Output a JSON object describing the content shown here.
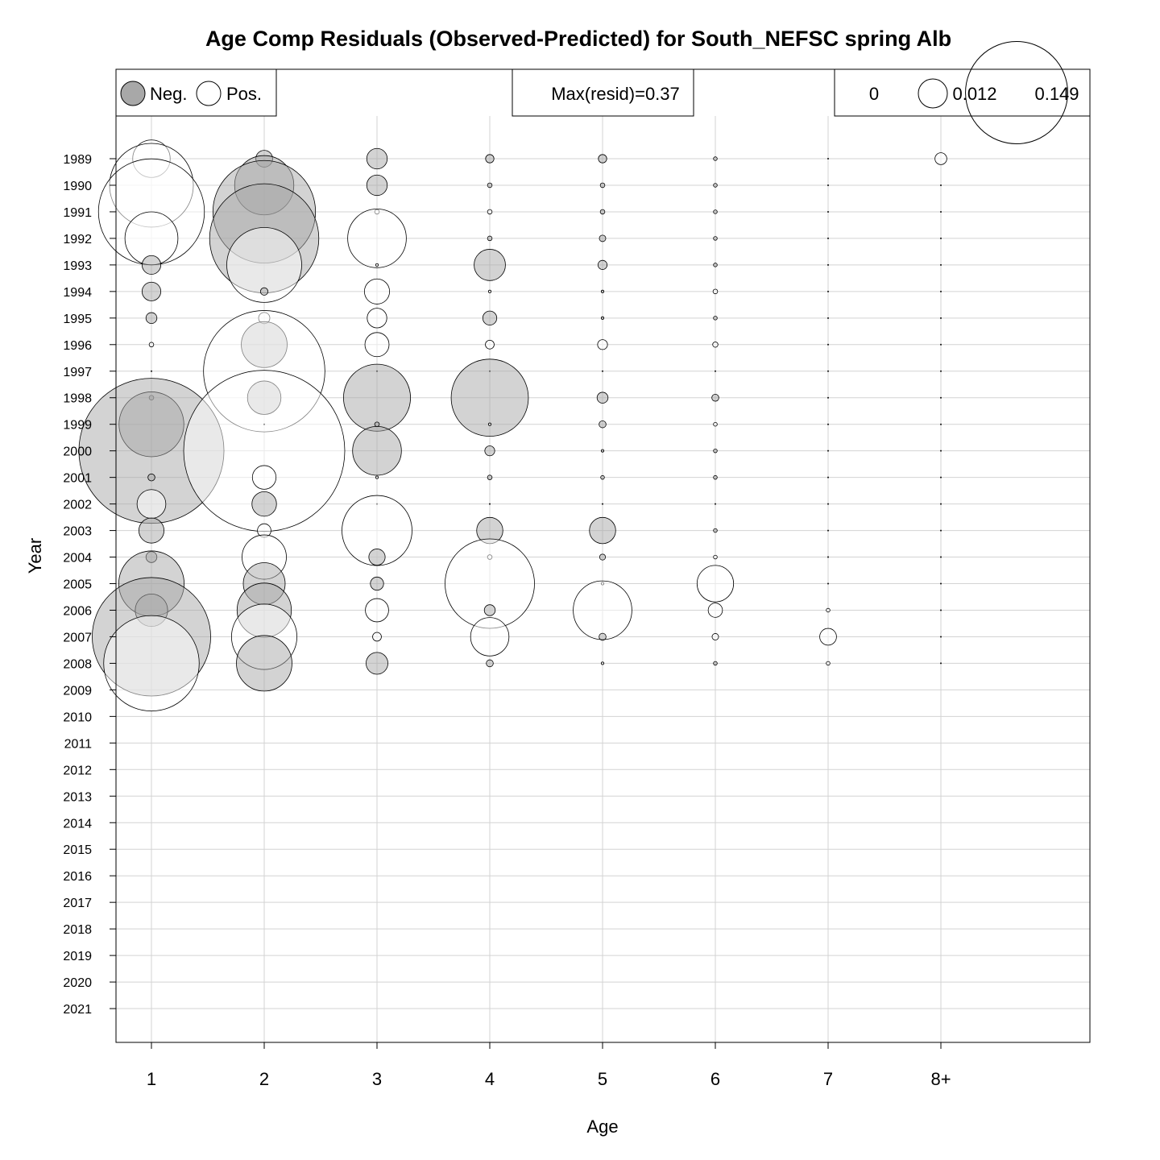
{
  "chart_data": {
    "type": "bubble",
    "title": "Age Comp Residuals (Observed-Predicted) for South_NEFSC spring Alb",
    "xlabel": "Age",
    "ylabel": "Year",
    "categories": [
      "1",
      "2",
      "3",
      "4",
      "5",
      "6",
      "7",
      "8+"
    ],
    "years": [
      "1989",
      "1990",
      "1991",
      "1992",
      "1993",
      "1994",
      "1995",
      "1996",
      "1997",
      "1998",
      "1999",
      "2000",
      "2001",
      "2002",
      "2003",
      "2004",
      "2005",
      "2006",
      "2007",
      "2008",
      "2009",
      "2010",
      "2011",
      "2012",
      "2013",
      "2014",
      "2015",
      "2016",
      "2017",
      "2018",
      "2019",
      "2020",
      "2021"
    ],
    "grid": true,
    "colors": {
      "negative": "#a8a8a8",
      "positive": "#ffffff",
      "outline": "#000000",
      "grid": "#d3d3d3"
    },
    "legend": {
      "sign": {
        "neg_label": "Neg.",
        "pos_label": "Pos."
      },
      "max_label": "Max(resid)=0.37",
      "sizes": [
        {
          "label": "0",
          "value": 0
        },
        {
          "label": "0.012",
          "value": 0.012
        },
        {
          "label": "0.149",
          "value": 0.149
        }
      ]
    },
    "max_resid": 0.37,
    "residuals": {
      "1989": [
        0.02,
        -0.004,
        -0.006,
        -0.001,
        -0.001,
        -0.0002,
        0.0,
        0.002
      ],
      "1990": [
        0.1,
        -0.05,
        -0.006,
        -0.0003,
        -0.0003,
        -0.0002,
        0.0,
        0.0
      ],
      "1991": [
        0.16,
        -0.15,
        0.0003,
        0.0003,
        -0.0003,
        -0.0002,
        0.0,
        0.0
      ],
      "1992": [
        0.04,
        -0.17,
        0.049,
        -0.0003,
        -0.0006,
        -0.0002,
        0.0,
        0.0
      ],
      "1993": [
        -0.005,
        0.08,
        0.0001,
        -0.014,
        -0.0012,
        -0.0002,
        0.0,
        0.0
      ],
      "1994": [
        -0.005,
        -0.0008,
        0.009,
        0.0001,
        -0.0001,
        0.0003,
        0.0,
        0.0
      ],
      "1995": [
        -0.0017,
        0.0018,
        0.0055,
        -0.0028,
        -0.0001,
        -0.0002,
        0.0,
        0.0
      ],
      "1996": [
        0.0003,
        -0.03,
        0.0083,
        0.0011,
        0.0014,
        0.0004,
        0.0,
        0.0
      ],
      "1997": [
        0.0,
        0.21,
        0.0,
        0.0,
        0.0,
        0.0,
        0.0,
        0.0
      ],
      "1998": [
        -0.0003,
        -0.016,
        -0.064,
        -0.085,
        -0.0017,
        -0.0007,
        0.0,
        0.0
      ],
      "1999": [
        -0.06,
        0.0,
        -0.0003,
        0.0001,
        -0.0007,
        0.0002,
        0.0,
        0.0
      ],
      "2000": [
        -0.3,
        0.37,
        -0.034,
        -0.0014,
        -0.0001,
        -0.0002,
        0.0,
        0.0
      ],
      "2001": [
        -0.0007,
        0.008,
        0.0001,
        -0.0003,
        -0.0002,
        -0.0002,
        0.0,
        0.0
      ],
      "2002": [
        0.0118,
        -0.0086,
        0.0,
        0.0,
        0.0,
        0.0,
        0.0,
        0.0
      ],
      "2003": [
        -0.009,
        0.0026,
        0.07,
        -0.0098,
        -0.0098,
        -0.0002,
        0.0,
        0.0
      ],
      "2004": [
        -0.0017,
        0.028,
        -0.0038,
        0.0003,
        -0.0005,
        0.0002,
        0.0,
        0.0
      ],
      "2005": [
        -0.061,
        -0.025,
        -0.0025,
        0.114,
        0.0001,
        0.019,
        0.0,
        0.0
      ],
      "2006": [
        -0.015,
        -0.042,
        0.0077,
        -0.0017,
        0.049,
        0.0029,
        0.0002,
        0.0
      ],
      "2007": [
        -0.2,
        0.061,
        0.0011,
        0.021,
        -0.0007,
        0.0006,
        0.004,
        0.0
      ],
      "2008": [
        0.13,
        -0.044,
        -0.0068,
        -0.0007,
        0.0001,
        -0.0002,
        0.0002,
        0.0
      ]
    }
  }
}
